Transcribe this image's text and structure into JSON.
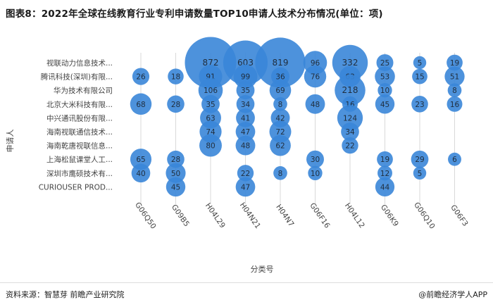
{
  "title": "图表8：2022年全球在线教育行业专利申请数量TOP10申请人技术分布情况(单位：项)",
  "source": "资料来源：智慧芽 前瞻产业研究院",
  "brand": "@前瞻经济学人APP",
  "colors": {
    "bubble": "#3a86d8",
    "bubble_text": "#1f2d3d",
    "grid": "#d9d9d9",
    "axis_text": "#444444"
  },
  "chart_data": {
    "type": "scatter",
    "xlabel": "分类号",
    "ylabel": "申请人",
    "categories_x": [
      "G06Q50",
      "G09B5",
      "H04L29",
      "H04N21",
      "H04N7",
      "G06F16",
      "H04L12",
      "G06K9",
      "G06Q10",
      "G06F3"
    ],
    "categories_y": [
      "视联动力信息技术...",
      "腾讯科技(深圳)有限...",
      "华为技术有限公司",
      "北京大米科技有限...",
      "中兴通讯股份有限...",
      "海南视联通信技术...",
      "海南乾唐视联信息...",
      "上海松鼠课堂人工...",
      "深圳市鹰硕技术有...",
      "CURIOUSER PROD..."
    ],
    "points": [
      {
        "x": "H04L29",
        "y": "视联动力信息技术...",
        "value": 872
      },
      {
        "x": "H04N21",
        "y": "视联动力信息技术...",
        "value": 603
      },
      {
        "x": "H04N7",
        "y": "视联动力信息技术...",
        "value": 819
      },
      {
        "x": "G06F16",
        "y": "视联动力信息技术...",
        "value": 96
      },
      {
        "x": "H04L12",
        "y": "视联动力信息技术...",
        "value": 332
      },
      {
        "x": "G06K9",
        "y": "视联动力信息技术...",
        "value": 25
      },
      {
        "x": "G06Q10",
        "y": "视联动力信息技术...",
        "value": 5
      },
      {
        "x": "G06F3",
        "y": "视联动力信息技术...",
        "value": 19
      },
      {
        "x": "G06Q50",
        "y": "腾讯科技(深圳)有限...",
        "value": 26
      },
      {
        "x": "G09B5",
        "y": "腾讯科技(深圳)有限...",
        "value": 18
      },
      {
        "x": "H04L29",
        "y": "腾讯科技(深圳)有限...",
        "value": 91
      },
      {
        "x": "H04N21",
        "y": "腾讯科技(深圳)有限...",
        "value": 99
      },
      {
        "x": "H04N7",
        "y": "腾讯科技(深圳)有限...",
        "value": 36
      },
      {
        "x": "G06F16",
        "y": "腾讯科技(深圳)有限...",
        "value": 76
      },
      {
        "x": "H04L12",
        "y": "腾讯科技(深圳)有限...",
        "value": 63
      },
      {
        "x": "G06K9",
        "y": "腾讯科技(深圳)有限...",
        "value": 53
      },
      {
        "x": "G06Q10",
        "y": "腾讯科技(深圳)有限...",
        "value": 15
      },
      {
        "x": "G06F3",
        "y": "腾讯科技(深圳)有限...",
        "value": 51
      },
      {
        "x": "H04L29",
        "y": "华为技术有限公司",
        "value": 106
      },
      {
        "x": "H04N21",
        "y": "华为技术有限公司",
        "value": 35
      },
      {
        "x": "H04N7",
        "y": "华为技术有限公司",
        "value": 69
      },
      {
        "x": "H04L12",
        "y": "华为技术有限公司",
        "value": 218
      },
      {
        "x": "G06K9",
        "y": "华为技术有限公司",
        "value": 10
      },
      {
        "x": "G06F3",
        "y": "华为技术有限公司",
        "value": 8
      },
      {
        "x": "G06Q50",
        "y": "北京大米科技有限...",
        "value": 68
      },
      {
        "x": "G09B5",
        "y": "北京大米科技有限...",
        "value": 28
      },
      {
        "x": "H04L29",
        "y": "北京大米科技有限...",
        "value": 35
      },
      {
        "x": "H04N21",
        "y": "北京大米科技有限...",
        "value": 34
      },
      {
        "x": "H04N7",
        "y": "北京大米科技有限...",
        "value": 8
      },
      {
        "x": "G06F16",
        "y": "北京大米科技有限...",
        "value": 48
      },
      {
        "x": "H04L12",
        "y": "北京大米科技有限...",
        "value": 16
      },
      {
        "x": "G06K9",
        "y": "北京大米科技有限...",
        "value": 45
      },
      {
        "x": "G06Q10",
        "y": "北京大米科技有限...",
        "value": 23
      },
      {
        "x": "G06F3",
        "y": "北京大米科技有限...",
        "value": 16
      },
      {
        "x": "H04L29",
        "y": "中兴通讯股份有限...",
        "value": 63
      },
      {
        "x": "H04N21",
        "y": "中兴通讯股份有限...",
        "value": 41
      },
      {
        "x": "H04N7",
        "y": "中兴通讯股份有限...",
        "value": 42
      },
      {
        "x": "H04L12",
        "y": "中兴通讯股份有限...",
        "value": 124
      },
      {
        "x": "H04L29",
        "y": "海南视联通信技术...",
        "value": 74
      },
      {
        "x": "H04N21",
        "y": "海南视联通信技术...",
        "value": 47
      },
      {
        "x": "H04N7",
        "y": "海南视联通信技术...",
        "value": 72
      },
      {
        "x": "H04L12",
        "y": "海南视联通信技术...",
        "value": 34
      },
      {
        "x": "H04L29",
        "y": "海南乾唐视联信息...",
        "value": 80
      },
      {
        "x": "H04N21",
        "y": "海南乾唐视联信息...",
        "value": 48
      },
      {
        "x": "H04N7",
        "y": "海南乾唐视联信息...",
        "value": 62
      },
      {
        "x": "H04L12",
        "y": "海南乾唐视联信息...",
        "value": 22
      },
      {
        "x": "G06Q50",
        "y": "上海松鼠课堂人工...",
        "value": 65
      },
      {
        "x": "G09B5",
        "y": "上海松鼠课堂人工...",
        "value": 28
      },
      {
        "x": "G06F16",
        "y": "上海松鼠课堂人工...",
        "value": 30
      },
      {
        "x": "G06K9",
        "y": "上海松鼠课堂人工...",
        "value": 19
      },
      {
        "x": "G06Q10",
        "y": "上海松鼠课堂人工...",
        "value": 29
      },
      {
        "x": "G06F3",
        "y": "上海松鼠课堂人工...",
        "value": 6
      },
      {
        "x": "G06Q50",
        "y": "深圳市鹰硕技术有...",
        "value": 40
      },
      {
        "x": "G09B5",
        "y": "深圳市鹰硕技术有...",
        "value": 50
      },
      {
        "x": "H04N21",
        "y": "深圳市鹰硕技术有...",
        "value": 22
      },
      {
        "x": "H04N7",
        "y": "深圳市鹰硕技术有...",
        "value": 8
      },
      {
        "x": "G06F16",
        "y": "深圳市鹰硕技术有...",
        "value": 10
      },
      {
        "x": "G06K9",
        "y": "深圳市鹰硕技术有...",
        "value": 12
      },
      {
        "x": "G06Q10",
        "y": "深圳市鹰硕技术有...",
        "value": 5
      },
      {
        "x": "G09B5",
        "y": "CURIOUSER PROD...",
        "value": 45
      },
      {
        "x": "H04N21",
        "y": "CURIOUSER PROD...",
        "value": 47
      },
      {
        "x": "G06K9",
        "y": "CURIOUSER PROD...",
        "value": 44
      }
    ]
  }
}
